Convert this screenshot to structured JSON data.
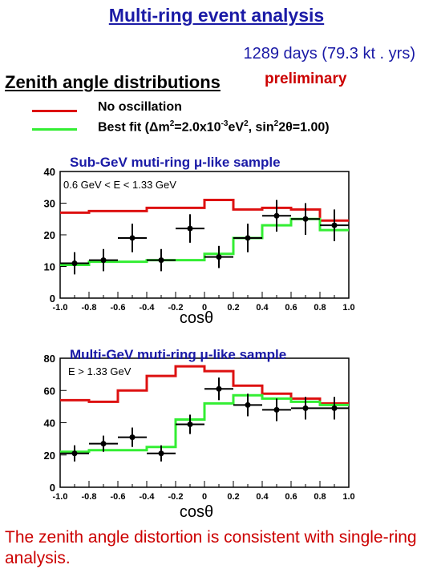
{
  "header": {
    "title": "Multi-ring event analysis",
    "exposure": "1289 days (79.3 kt . yrs)",
    "subtitle": "Zenith angle distributions",
    "preliminary": "preliminary"
  },
  "legend": {
    "no_osc": "No oscillation",
    "best_fit_prefix": "Best fit (",
    "best_fit_delta": "Δ",
    "best_fit_m2": "m",
    "best_fit_sup1": "2",
    "best_fit_mid": "=2.0x10",
    "best_fit_sup2": "-3",
    "best_fit_unit": "eV",
    "best_fit_sup3": "2",
    "best_fit_sin": ", sin",
    "best_fit_sup4": "2",
    "best_fit_tail": "2θ=1.00)",
    "no_osc_color": "#dd1111",
    "best_fit_color": "#33ee33"
  },
  "footer": {
    "conclusion": "The zenith angle distortion is consistent with single-ring analysis."
  },
  "chart_data": [
    {
      "type": "line",
      "title": "Sub-GeV muti-ring μ-like sample",
      "energy_label": "0.6 GeV < E < 1.33 GeV",
      "xlabel": "cosθ",
      "xlim": [
        -1.0,
        1.0
      ],
      "ylim": [
        0,
        40
      ],
      "xticks": [
        "-1.0",
        "-0.8",
        "-0.6",
        "-0.4",
        "-0.2",
        "0",
        "0.2",
        "0.4",
        "0.6",
        "0.8",
        "1.0"
      ],
      "yticks": [
        "0",
        "10",
        "20",
        "30",
        "40"
      ],
      "bin_edges": [
        -1.0,
        -0.8,
        -0.6,
        -0.4,
        -0.2,
        0.0,
        0.2,
        0.4,
        0.6,
        0.8,
        1.0
      ],
      "series": [
        {
          "name": "No oscillation",
          "color": "#dd1111",
          "values": [
            27,
            27.5,
            27.5,
            28.5,
            28.5,
            31,
            28,
            28.5,
            28,
            24.5
          ]
        },
        {
          "name": "Best fit",
          "color": "#33ee33",
          "values": [
            10.5,
            11.5,
            11.5,
            12,
            12,
            14,
            19,
            23,
            25,
            21.5
          ]
        }
      ],
      "data_points": [
        {
          "x": -0.9,
          "y": 11,
          "err": 3.5
        },
        {
          "x": -0.7,
          "y": 12,
          "err": 3.5
        },
        {
          "x": -0.5,
          "y": 19,
          "err": 4.5
        },
        {
          "x": -0.3,
          "y": 12,
          "err": 3.5
        },
        {
          "x": -0.1,
          "y": 22,
          "err": 4.5
        },
        {
          "x": 0.1,
          "y": 13,
          "err": 3.5
        },
        {
          "x": 0.3,
          "y": 19,
          "err": 4.5
        },
        {
          "x": 0.5,
          "y": 26,
          "err": 5
        },
        {
          "x": 0.7,
          "y": 25,
          "err": 5
        },
        {
          "x": 0.9,
          "y": 23,
          "err": 5
        }
      ]
    },
    {
      "type": "line",
      "title": "Multi-GeV   muti-ring μ-like sample",
      "energy_label": "E > 1.33 GeV",
      "xlabel": "cosθ",
      "xlim": [
        -1.0,
        1.0
      ],
      "ylim": [
        0,
        80
      ],
      "xticks": [
        "-1.0",
        "-0.8",
        "-0.6",
        "-0.4",
        "-0.2",
        "0",
        "0.2",
        "0.4",
        "0.6",
        "0.8",
        "1.0"
      ],
      "yticks": [
        "0",
        "20",
        "40",
        "60",
        "80"
      ],
      "bin_edges": [
        -1.0,
        -0.8,
        -0.6,
        -0.4,
        -0.2,
        0.0,
        0.2,
        0.4,
        0.6,
        0.8,
        1.0
      ],
      "series": [
        {
          "name": "No oscillation",
          "color": "#dd1111",
          "values": [
            54,
            53,
            60,
            69,
            75,
            72,
            63,
            58,
            55,
            52
          ]
        },
        {
          "name": "Best fit",
          "color": "#33ee33",
          "values": [
            22,
            23,
            23,
            25,
            42,
            52,
            57,
            55,
            53,
            51
          ]
        }
      ],
      "data_points": [
        {
          "x": -0.9,
          "y": 21,
          "err": 5
        },
        {
          "x": -0.7,
          "y": 27,
          "err": 5
        },
        {
          "x": -0.5,
          "y": 31,
          "err": 6
        },
        {
          "x": -0.3,
          "y": 21,
          "err": 5
        },
        {
          "x": -0.1,
          "y": 39,
          "err": 6
        },
        {
          "x": 0.1,
          "y": 61,
          "err": 7
        },
        {
          "x": 0.3,
          "y": 51,
          "err": 7
        },
        {
          "x": 0.5,
          "y": 48,
          "err": 7
        },
        {
          "x": 0.7,
          "y": 49,
          "err": 7
        },
        {
          "x": 0.9,
          "y": 49,
          "err": 7
        }
      ]
    }
  ]
}
